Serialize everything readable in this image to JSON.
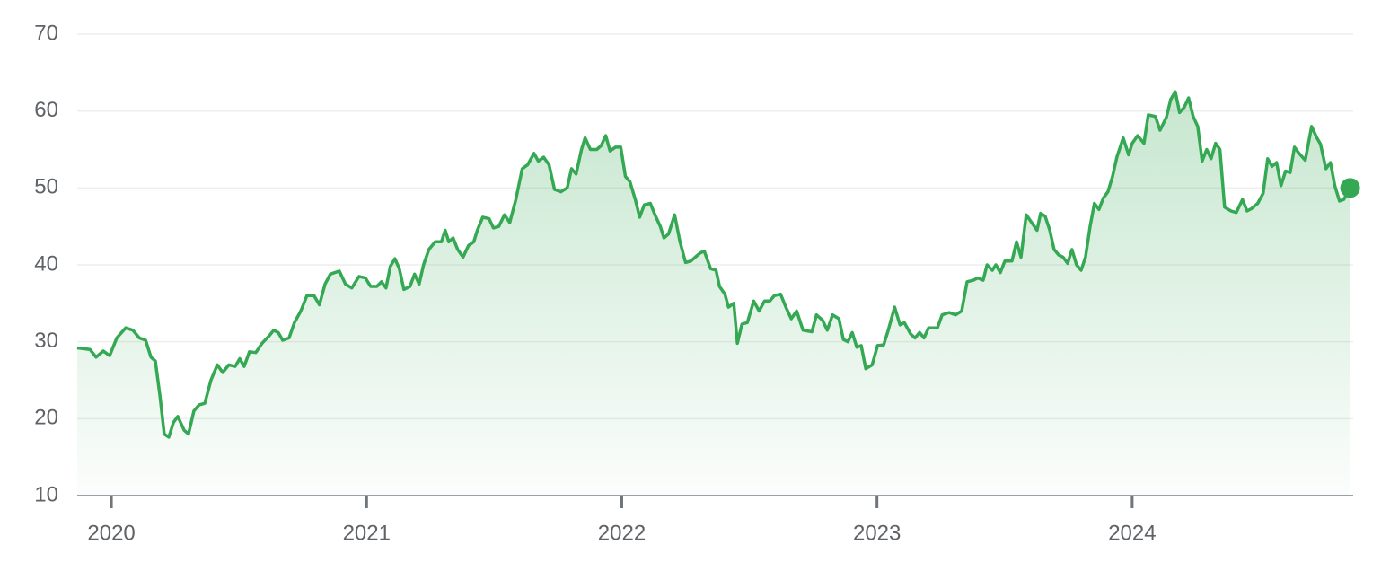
{
  "chart_data": {
    "type": "line",
    "x": [
      2019.866,
      2019.916,
      2019.94,
      2019.968,
      2019.993,
      2020.021,
      2020.056,
      2020.084,
      2020.109,
      2020.134,
      2020.155,
      2020.172,
      2020.19,
      2020.207,
      2020.225,
      2020.243,
      2020.26,
      2020.285,
      2020.302,
      2020.323,
      2020.344,
      2020.366,
      2020.39,
      2020.415,
      2020.436,
      2020.46,
      2020.485,
      2020.503,
      2020.52,
      2020.541,
      2020.566,
      2020.59,
      2020.619,
      2020.636,
      2020.654,
      2020.671,
      2020.696,
      2020.717,
      2020.742,
      2020.766,
      2020.794,
      2020.815,
      2020.837,
      2020.858,
      2020.893,
      2020.917,
      2020.942,
      2020.97,
      2020.995,
      2021.016,
      2021.04,
      2021.058,
      2021.076,
      2021.093,
      2021.111,
      2021.128,
      2021.146,
      2021.17,
      2021.188,
      2021.206,
      2021.223,
      2021.244,
      2021.269,
      2021.293,
      2021.308,
      2021.322,
      2021.339,
      2021.357,
      2021.378,
      2021.399,
      2021.42,
      2021.434,
      2021.455,
      2021.48,
      2021.497,
      2021.518,
      2021.54,
      2021.561,
      2021.585,
      2021.61,
      2021.631,
      2021.656,
      2021.673,
      2021.694,
      2021.715,
      2021.736,
      2021.761,
      2021.786,
      2021.803,
      2021.821,
      2021.842,
      2021.856,
      2021.877,
      2021.902,
      2021.919,
      2021.937,
      2021.954,
      2021.975,
      2021.996,
      2022.014,
      2022.032,
      2022.053,
      2022.07,
      2022.088,
      2022.112,
      2022.13,
      2022.151,
      2022.165,
      2022.183,
      2022.207,
      2022.228,
      2022.25,
      2022.271,
      2022.288,
      2022.306,
      2022.323,
      2022.348,
      2022.369,
      2022.383,
      2022.404,
      2022.418,
      2022.439,
      2022.453,
      2022.471,
      2022.492,
      2022.517,
      2022.538,
      2022.559,
      2022.58,
      2022.598,
      2022.622,
      2022.643,
      2022.664,
      2022.685,
      2022.71,
      2022.745,
      2022.763,
      2022.787,
      2022.805,
      2022.826,
      2022.851,
      2022.868,
      2022.886,
      2022.903,
      2022.921,
      2022.938,
      2022.956,
      2022.981,
      2023.002,
      2023.026,
      2023.044,
      2023.069,
      2023.09,
      2023.107,
      2023.132,
      2023.149,
      2023.167,
      2023.184,
      2023.202,
      2023.237,
      2023.255,
      2023.283,
      2023.308,
      2023.332,
      2023.353,
      2023.378,
      2023.395,
      2023.416,
      2023.431,
      2023.452,
      2023.466,
      2023.483,
      2023.501,
      2023.529,
      2023.547,
      2023.564,
      2023.585,
      2023.606,
      2023.627,
      2023.641,
      2023.659,
      2023.677,
      2023.694,
      2023.712,
      2023.729,
      2023.747,
      2023.764,
      2023.782,
      2023.8,
      2023.817,
      2023.835,
      2023.852,
      2023.87,
      2023.887,
      2023.905,
      2023.923,
      2023.94,
      2023.965,
      2023.986,
      2024.0,
      2024.021,
      2024.046,
      2024.063,
      2024.091,
      2024.109,
      2024.134,
      2024.151,
      2024.169,
      2024.186,
      2024.204,
      2024.221,
      2024.239,
      2024.257,
      2024.274,
      2024.292,
      2024.309,
      2024.327,
      2024.344,
      2024.362,
      2024.387,
      2024.408,
      2024.432,
      2024.45,
      2024.467,
      2024.492,
      2024.513,
      2024.531,
      2024.548,
      2024.566,
      2024.583,
      2024.601,
      2024.619,
      2024.636,
      2024.654,
      2024.678,
      2024.703,
      2024.724,
      2024.738,
      2024.759,
      2024.777,
      2024.794,
      2024.812,
      2024.829,
      2024.854
    ],
    "series": [
      {
        "color": "#34a853",
        "values": [
          29.2,
          29.0,
          28.0,
          28.8,
          28.2,
          30.5,
          31.8,
          31.5,
          30.5,
          30.2,
          28.0,
          27.5,
          23,
          18.0,
          17.6,
          19.5,
          20.3,
          18.5,
          18.0,
          21.0,
          21.8,
          22,
          25,
          27,
          26,
          27,
          26.8,
          27.8,
          26.8,
          28.7,
          28.6,
          29.8,
          30.8,
          31.5,
          31.2,
          30.2,
          30.5,
          32.5,
          34,
          36,
          36,
          34.8,
          37.5,
          38.8,
          39.2,
          37.5,
          37,
          38.5,
          38.3,
          37.2,
          37.2,
          37.8,
          37,
          39.8,
          40.8,
          39.5,
          36.8,
          37.2,
          38.8,
          37.5,
          40,
          42,
          43,
          43,
          44.5,
          43,
          43.5,
          42,
          41,
          42.5,
          43,
          44.5,
          46.2,
          46,
          44.8,
          45,
          46.5,
          45.5,
          48.5,
          52.5,
          53,
          54.5,
          53.5,
          54,
          53,
          49.8,
          49.5,
          50,
          52.5,
          51.8,
          55,
          56.5,
          55,
          55,
          55.5,
          56.8,
          54.8,
          55.3,
          55.3,
          51.5,
          50.8,
          48.5,
          46.2,
          47.8,
          48,
          46.5,
          45,
          43.5,
          44,
          46.5,
          43,
          40.3,
          40.5,
          41,
          41.5,
          41.8,
          39.5,
          39.3,
          37.2,
          36.2,
          34.5,
          35,
          29.8,
          32.3,
          32.5,
          35.3,
          34,
          35.3,
          35.3,
          36,
          36.2,
          34.5,
          33,
          34,
          31.5,
          31.3,
          33.5,
          32.8,
          31.5,
          33.5,
          33,
          30.3,
          30,
          31.2,
          29.3,
          29.5,
          26.5,
          27,
          29.5,
          29.6,
          31.5,
          34.5,
          32.2,
          32.5,
          31,
          30.5,
          31.2,
          30.5,
          31.8,
          31.8,
          33.5,
          33.8,
          33.5,
          34,
          37.8,
          38,
          38.3,
          38,
          40,
          39.3,
          40,
          39,
          40.5,
          40.5,
          43,
          41,
          46.5,
          45.5,
          44.5,
          46.7,
          46.3,
          44.5,
          42,
          41.3,
          41,
          40.2,
          42,
          40,
          39.3,
          41,
          45,
          48,
          47.2,
          48.7,
          49.5,
          51.5,
          54,
          56.5,
          54.3,
          55.8,
          56.8,
          55.8,
          59.5,
          59.3,
          57.5,
          59.2,
          61.5,
          62.5,
          59.8,
          60.5,
          61.7,
          59.3,
          58,
          53.5,
          55,
          53.8,
          55.8,
          55,
          47.5,
          47,
          46.8,
          48.5,
          47,
          47.3,
          48,
          49.3,
          53.8,
          52.8,
          53.3,
          50.3,
          52.2,
          52,
          55.3,
          54.5,
          53.6,
          58,
          56.5,
          55.7,
          52.5,
          53.3,
          50.3,
          48.3,
          48.5,
          50
        ]
      }
    ],
    "xlim": [
      2019.866,
      2024.866
    ],
    "xticks": [
      2020,
      2021,
      2022,
      2023,
      2024
    ],
    "ylim": [
      10,
      70
    ],
    "yticks": [
      10,
      20,
      30,
      40,
      50,
      60,
      70
    ],
    "grid": true
  }
}
